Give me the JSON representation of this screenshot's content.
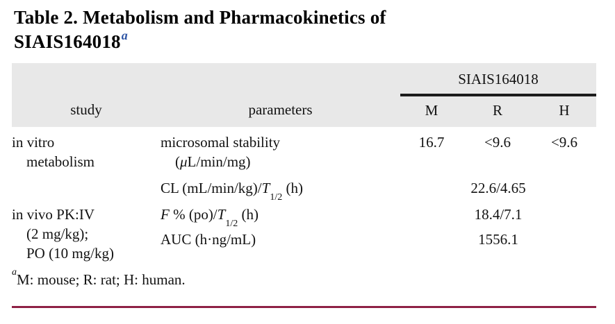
{
  "title": {
    "line1": "Table 2. Metabolism and Pharmacokinetics of",
    "line2": "SIAIS164018",
    "superscript": "a"
  },
  "header": {
    "compound": "SIAIS164018",
    "study": "study",
    "parameters": "parameters",
    "species": {
      "m": "M",
      "r": "R",
      "h": "H"
    }
  },
  "body": {
    "row1": {
      "study1": "in vitro",
      "study2": "metabolism",
      "param1": "microsomal stability",
      "param2_open": "(",
      "param2_mu": "μ",
      "param2_rest": "L/min/mg)",
      "m": "16.7",
      "r": "<9.6",
      "h": "<9.6"
    },
    "row2": {
      "param_pre": "CL (mL/min/kg)/",
      "param_T": "T",
      "param_sub": "1/2",
      "param_post": " (h)",
      "value": "22.6/4.65"
    },
    "row3": {
      "study1": "in vivo PK:IV",
      "study2": "(2 mg/kg);",
      "study3": "PO (10 mg/kg)",
      "param_F": "F",
      "param_mid": " % (po)/",
      "param_T": "T",
      "param_sub": "1/2",
      "param_post": " (h)",
      "value": "18.4/7.1"
    },
    "row4": {
      "param": "AUC (h·ng/mL)",
      "value": "1556.1"
    }
  },
  "footnote": {
    "marker": "a",
    "text": "M: mouse; R: rat; H: human."
  },
  "colors": {
    "header_bg": "#e8e8e8",
    "rule_black": "#1c1c1c",
    "rule_maroon": "#8e2145",
    "superscript_blue": "#2e55a5"
  }
}
